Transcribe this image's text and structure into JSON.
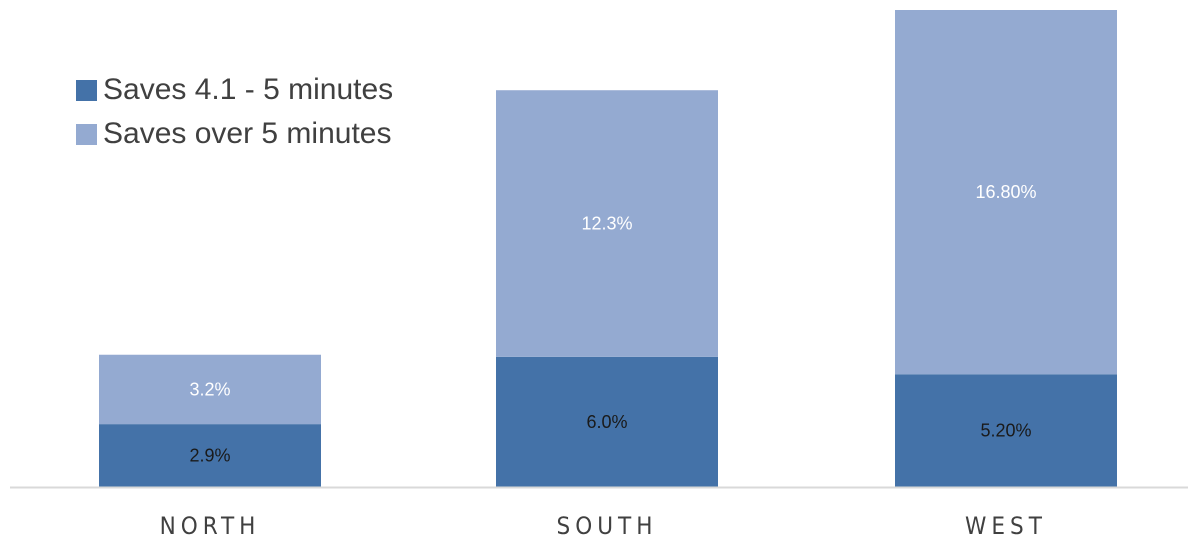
{
  "chart_data": {
    "type": "bar",
    "stacked": true,
    "categories": [
      "NORTH",
      "SOUTH",
      "WEST"
    ],
    "series": [
      {
        "name": "Saves 4.1 - 5 minutes",
        "values": [
          2.9,
          6.0,
          5.2
        ],
        "labels": [
          "2.9%",
          "6.0%",
          "5.20%"
        ],
        "color": "#4472A8",
        "label_color": "#1a1a1a"
      },
      {
        "name": "Saves over 5 minutes",
        "values": [
          3.2,
          12.3,
          16.8
        ],
        "labels": [
          "3.2%",
          "12.3%",
          "16.80%"
        ],
        "color": "#94AAD1",
        "label_color": "#ffffff"
      }
    ],
    "ylim": [
      0,
      22
    ],
    "grid": false,
    "legend_position": "top-left",
    "title": "",
    "xlabel": "",
    "ylabel": ""
  }
}
